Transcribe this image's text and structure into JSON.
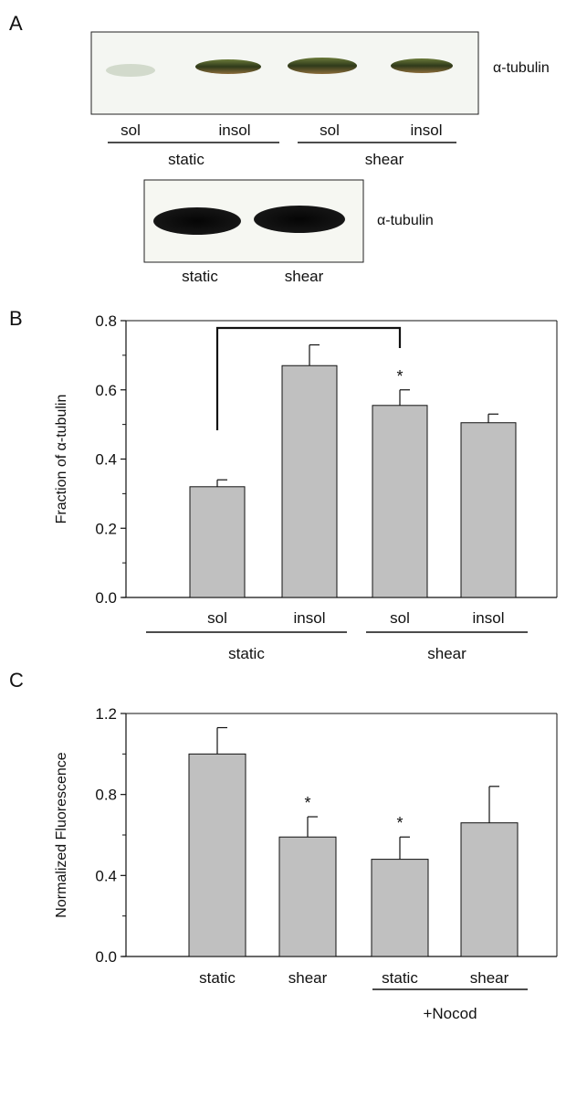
{
  "panels": {
    "A": {
      "letter": "A",
      "blot1": {
        "protein_label": "α-tubulin",
        "lanes": [
          "sol",
          "insol",
          "sol",
          "insol"
        ],
        "groups": [
          "static",
          "shear"
        ]
      },
      "blot2": {
        "protein_label": "α-tubulin",
        "lanes": [
          "static",
          "shear"
        ]
      }
    },
    "B": {
      "letter": "B"
    },
    "C": {
      "letter": "C"
    }
  },
  "chart_data": [
    {
      "type": "bar",
      "panel": "B",
      "categories": [
        "sol",
        "insol",
        "sol",
        "insol"
      ],
      "groups": [
        {
          "label": "static",
          "categories": [
            0,
            1
          ]
        },
        {
          "label": "shear",
          "categories": [
            2,
            3
          ]
        }
      ],
      "values": [
        0.32,
        0.67,
        0.555,
        0.505
      ],
      "errors": [
        0.02,
        0.06,
        0.045,
        0.025
      ],
      "significance": [
        "",
        "",
        "*",
        ""
      ],
      "bracket": {
        "from": 0,
        "to": 2
      },
      "title": "",
      "xlabel": "",
      "ylabel": "Fraction of α-tubulin",
      "ylim": [
        0,
        0.8
      ],
      "yticks": [
        0.0,
        0.2,
        0.4,
        0.6,
        0.8
      ],
      "ytick_labels": [
        "0.0",
        "0.2",
        "0.4",
        "0.6",
        "0.8"
      ],
      "bar_color": "#c0c0c0"
    },
    {
      "type": "bar",
      "panel": "C",
      "categories": [
        "static",
        "shear",
        "static",
        "shear"
      ],
      "groups": [
        {
          "label": "+Nocod",
          "categories": [
            2,
            3
          ]
        }
      ],
      "values": [
        1.0,
        0.59,
        0.48,
        0.66
      ],
      "errors": [
        0.13,
        0.1,
        0.11,
        0.18
      ],
      "significance": [
        "",
        "*",
        "*",
        ""
      ],
      "title": "",
      "xlabel": "",
      "ylabel": "Normalized Fluorescence",
      "ylim": [
        0,
        1.2
      ],
      "yticks": [
        0.0,
        0.4,
        0.8,
        1.2
      ],
      "ytick_labels": [
        "0.0",
        "0.4",
        "0.8",
        "1.2"
      ],
      "bar_color": "#c0c0c0"
    }
  ]
}
